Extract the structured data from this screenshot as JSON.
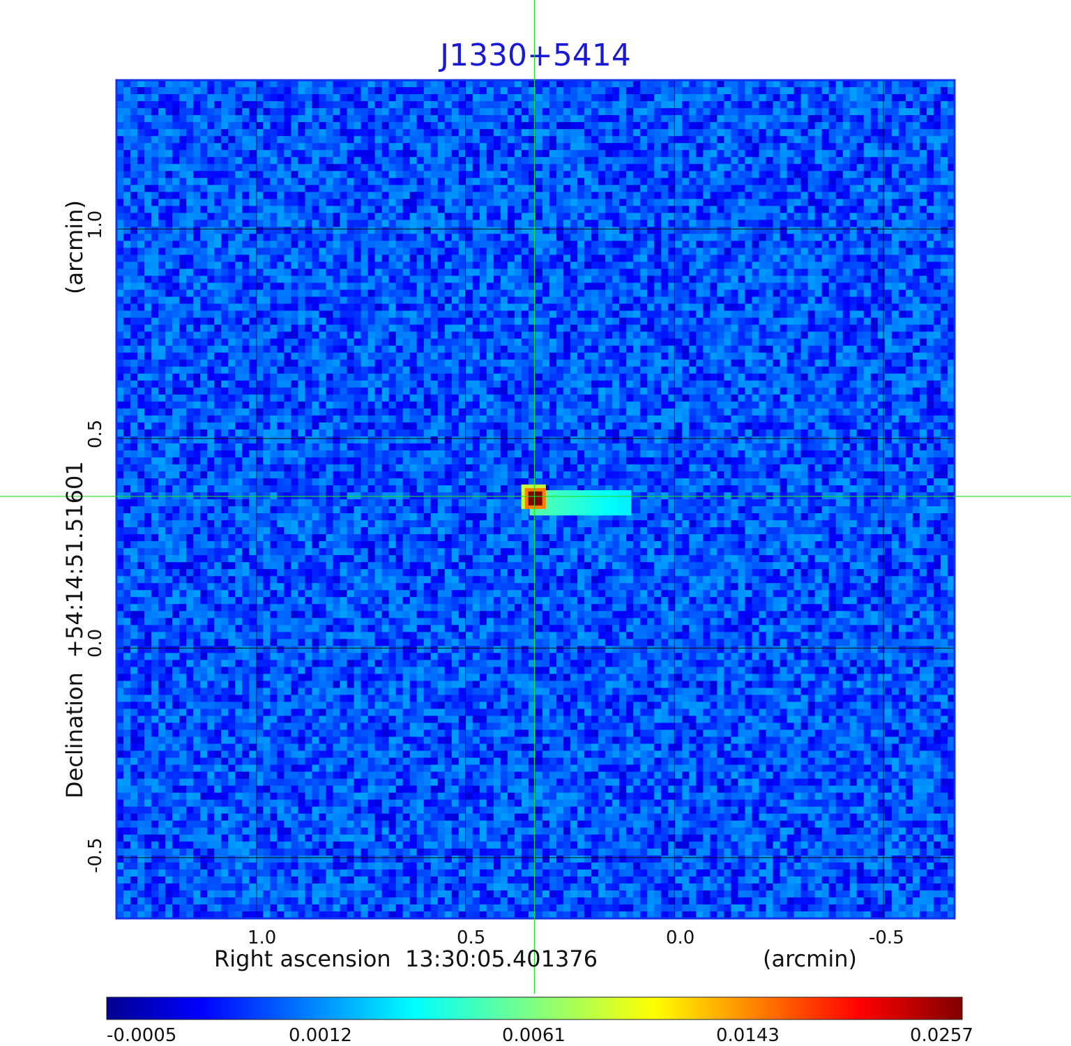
{
  "chart_data": {
    "type": "heatmap",
    "title": "J1330+5414",
    "xlabel": "Right ascension  13:30:05.401376",
    "xunit": "(arcmin)",
    "ylabel": "Declination  +54:14:51.51601",
    "yunit": "(arcmin)",
    "x_ticks": [
      "1.0",
      "0.5",
      "0.0",
      "-0.5"
    ],
    "y_ticks": [
      "1.0",
      "0.5",
      "0.0",
      "-0.5"
    ],
    "xlim": [
      1.335,
      -0.67
    ],
    "ylim": [
      -0.645,
      1.355
    ],
    "grid": true,
    "colormap": "jet",
    "colorbar_ticks": [
      "-0.0005",
      "0.0012",
      "0.0061",
      "0.0143",
      "0.0257"
    ],
    "value_range": [
      -0.0005,
      0.0257
    ],
    "background_level": 0.0008,
    "peak": {
      "x": 0.333,
      "y": 0.357,
      "value": 0.0257
    },
    "extended_emission": {
      "x_from": 0.33,
      "x_to": 0.12,
      "y": 0.34,
      "value": 0.0045
    },
    "crosshair": {
      "x": 0.335,
      "y": 0.362,
      "color": "#22dd22"
    }
  }
}
